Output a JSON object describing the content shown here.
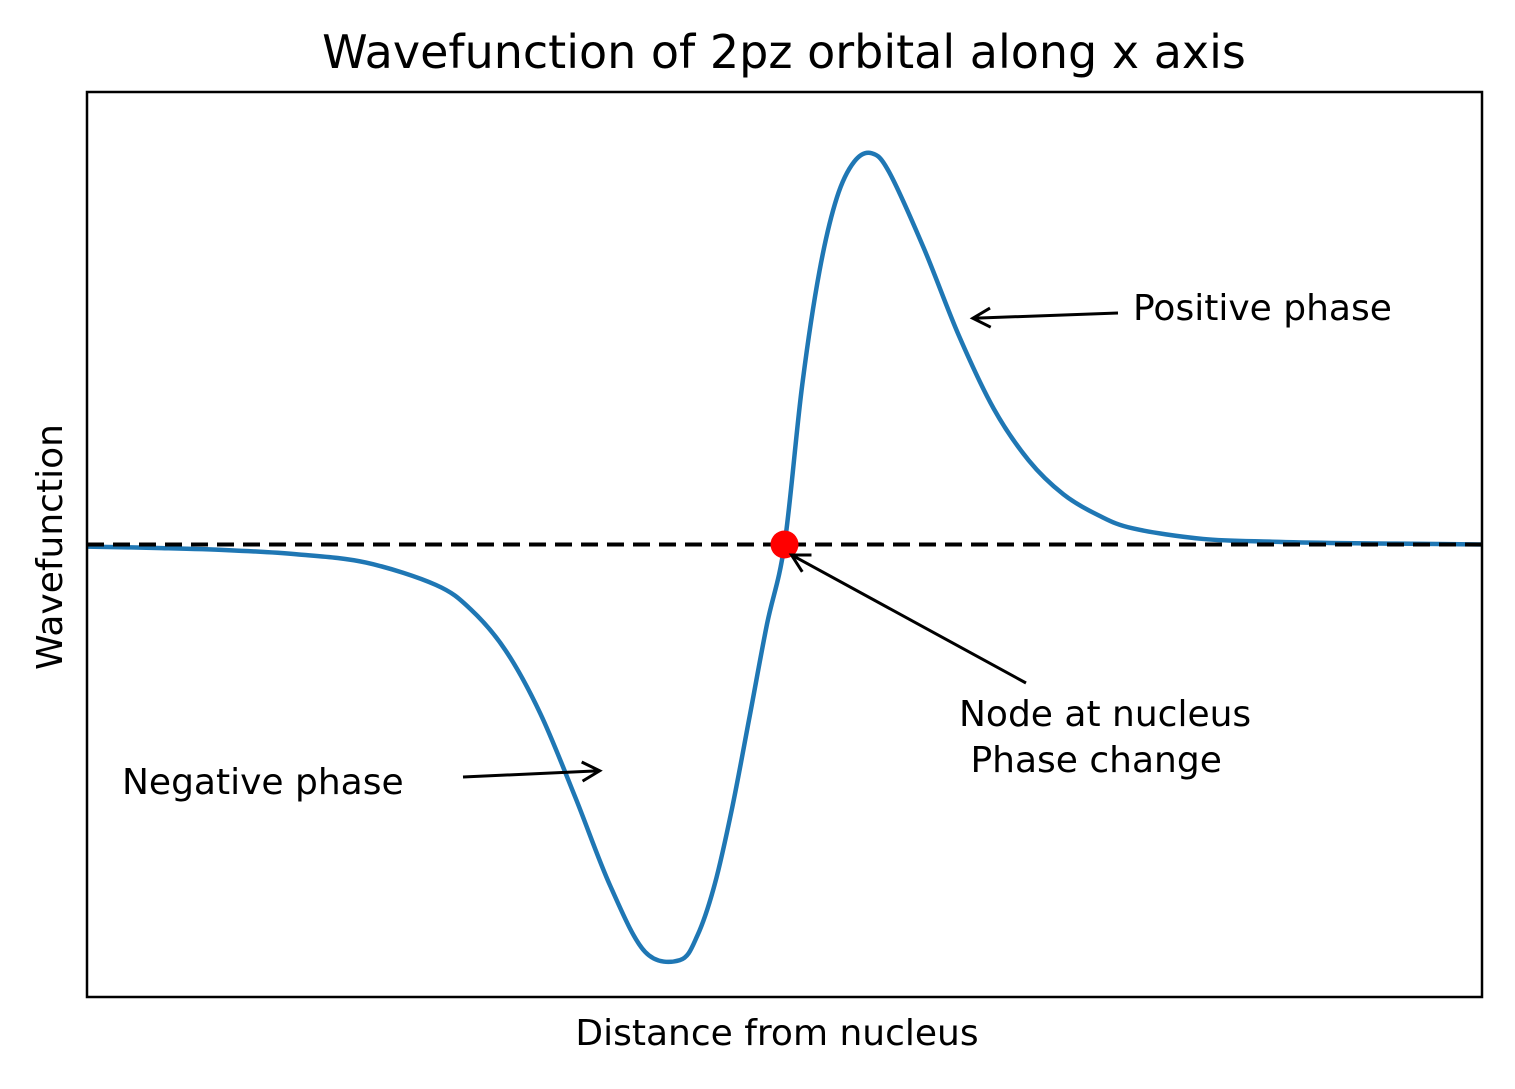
{
  "chart_data": {
    "type": "line",
    "title": "Wavefunction of 2pz orbital along x axis",
    "xlabel": "Distance from nucleus",
    "ylabel": "Wavefunction",
    "xlim": [
      -10,
      10
    ],
    "ylim": [
      -0.65,
      0.65
    ],
    "xticks_shown": false,
    "yticks_shown": false,
    "grid": false,
    "legend": "none",
    "series": [
      {
        "color": "#1f77b4",
        "x": [
          -10,
          -9,
          -8,
          -7,
          -6,
          -5,
          -4.5,
          -4,
          -3.5,
          -3,
          -2.5,
          -2,
          -1.5,
          -1.25,
          -1,
          -0.75,
          -0.5,
          -0.25,
          0,
          0.25,
          0.5,
          0.75,
          1,
          1.25,
          1.5,
          2,
          2.5,
          3,
          3.5,
          4,
          4.5,
          5,
          6,
          7,
          8,
          9,
          10
        ],
        "y": [
          -0.003,
          -0.005,
          -0.008,
          -0.014,
          -0.026,
          -0.058,
          -0.093,
          -0.152,
          -0.243,
          -0.363,
          -0.49,
          -0.585,
          -0.597,
          -0.562,
          -0.488,
          -0.378,
          -0.247,
          -0.114,
          0.0,
          0.226,
          0.392,
          0.498,
          0.55,
          0.562,
          0.535,
          0.425,
          0.3,
          0.195,
          0.121,
          0.072,
          0.042,
          0.023,
          0.008,
          0.004,
          0.002,
          0.001,
          0.0
        ]
      }
    ],
    "baseline": {
      "y": 0,
      "style": "dashed",
      "color": "#000000"
    },
    "node_marker": {
      "x": 0,
      "y": 0,
      "color": "#ff0000"
    },
    "annotations": [
      {
        "name": "positive",
        "text": "Positive phase",
        "point": {
          "x": 2.7,
          "y": 0.325
        }
      },
      {
        "name": "negative",
        "text": "Negative phase",
        "point": {
          "x": -2.65,
          "y": -0.325
        }
      },
      {
        "name": "node",
        "lines": [
          "Node at nucleus",
          " Phase change"
        ],
        "point": {
          "x": 0.1,
          "y": -0.015
        }
      }
    ]
  }
}
